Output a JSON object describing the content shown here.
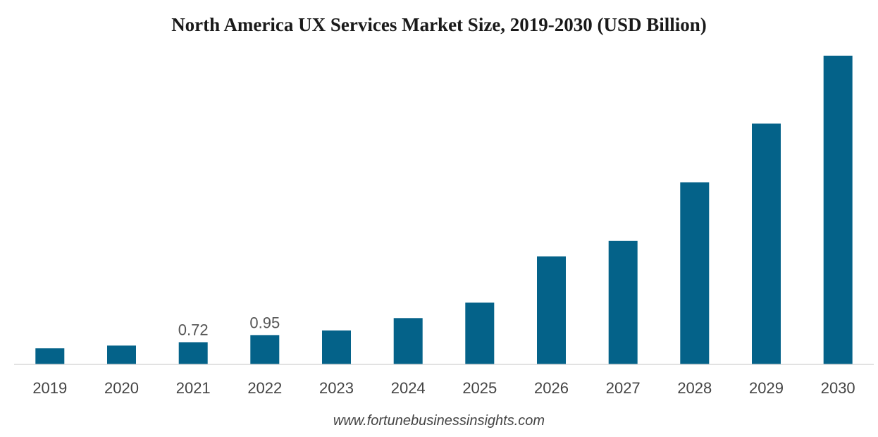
{
  "chart_data": {
    "type": "bar",
    "title": "North America UX Services Market Size, 2019-2030 (USD Billion)",
    "xlabel": "",
    "ylabel": "",
    "categories": [
      "2019",
      "2020",
      "2021",
      "2022",
      "2023",
      "2024",
      "2025",
      "2026",
      "2027",
      "2028",
      "2029",
      "2030"
    ],
    "values": [
      0.52,
      0.61,
      0.72,
      0.95,
      1.1,
      1.5,
      2.0,
      3.5,
      4.0,
      5.9,
      7.8,
      10.0
    ],
    "data_labels": [
      "",
      "",
      "0.72",
      "0.95",
      "",
      "",
      "",
      "",
      "",
      "",
      "",
      ""
    ],
    "ylim": [
      0,
      10.0
    ],
    "bar_color": "#046289",
    "grid": false,
    "legend": "none"
  },
  "source": "www.fortunebusinessinsights.com"
}
